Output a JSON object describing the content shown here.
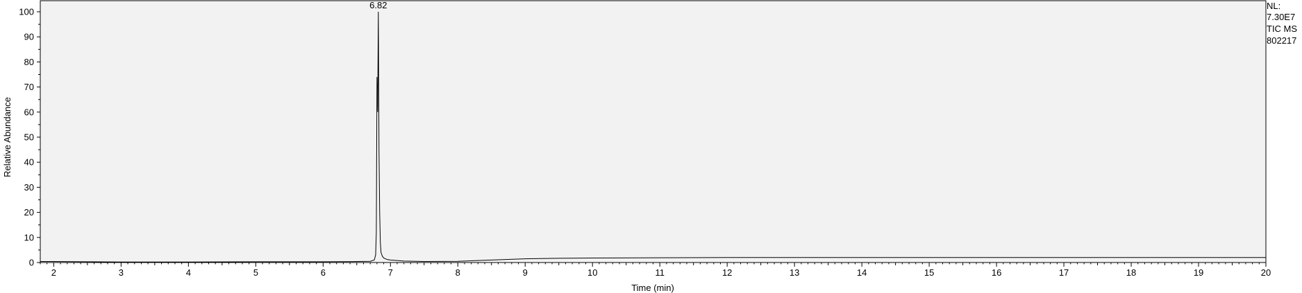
{
  "chart_data": {
    "type": "line",
    "title": "",
    "xlabel": "Time (min)",
    "ylabel": "Relative Abundance",
    "xlim": [
      1.8,
      20.0
    ],
    "ylim": [
      0,
      100
    ],
    "xticks": [
      2,
      3,
      4,
      5,
      6,
      7,
      8,
      9,
      10,
      11,
      12,
      13,
      14,
      15,
      16,
      17,
      18,
      19,
      20
    ],
    "yticks": [
      0,
      10,
      20,
      30,
      40,
      50,
      60,
      70,
      80,
      90,
      100
    ],
    "grid": false,
    "background": "#f2f2f2",
    "line_color": "#000000",
    "peak_annotations": [
      {
        "x": 6.82,
        "y": 100,
        "label": "6.82"
      }
    ],
    "series": [
      {
        "x": [
          1.8,
          2.0,
          2.5,
          3.0,
          3.5,
          4.0,
          5.0,
          6.0,
          6.5,
          6.7,
          6.76,
          6.78,
          6.79,
          6.8,
          6.81,
          6.82,
          6.83,
          6.84,
          6.85,
          6.86,
          6.88,
          6.9,
          6.95,
          7.0,
          7.2,
          7.5,
          8.0,
          8.5,
          9.0,
          9.5,
          10.0,
          11.0,
          12.0,
          14.0,
          16.0,
          18.0,
          20.0
        ],
        "y": [
          0.4,
          0.4,
          0.3,
          0.2,
          0.2,
          0.2,
          0.3,
          0.3,
          0.4,
          0.5,
          1.0,
          3.0,
          12.0,
          74.0,
          60.0,
          100.0,
          45.0,
          20.0,
          8.0,
          4.0,
          2.5,
          1.8,
          1.2,
          1.0,
          0.6,
          0.4,
          0.5,
          1.0,
          1.5,
          1.7,
          1.8,
          1.9,
          2.0,
          2.0,
          2.0,
          2.0,
          2.0
        ]
      }
    ]
  },
  "side_info": {
    "nl_label": "NL:",
    "nl_value": "7.30E7",
    "scan_type": "TIC  MS",
    "sample_id": "802217"
  }
}
